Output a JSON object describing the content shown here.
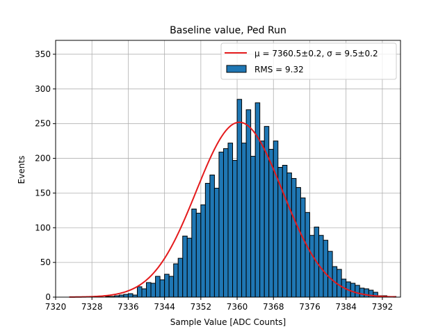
{
  "chart_data": {
    "type": "bar",
    "title": "Baseline value, Ped Run",
    "xlabel": "Sample Value [ADC Counts]",
    "ylabel": "Events",
    "xlim": [
      7320,
      7396
    ],
    "ylim": [
      0,
      370
    ],
    "xticks": [
      7320,
      7328,
      7336,
      7344,
      7352,
      7360,
      7368,
      7376,
      7384,
      7392
    ],
    "yticks": [
      0,
      50,
      100,
      150,
      200,
      250,
      300,
      350
    ],
    "grid": true,
    "legend_position": "top-right",
    "bin_width": 1,
    "histogram": {
      "name": "RMS = 9.32",
      "color": "#1f77b4",
      "edge_color": "#000000",
      "x": [
        7323,
        7324,
        7325,
        7326,
        7327,
        7328,
        7329,
        7330,
        7331,
        7332,
        7333,
        7334,
        7335,
        7336,
        7337,
        7338,
        7339,
        7340,
        7341,
        7342,
        7343,
        7344,
        7345,
        7346,
        7347,
        7348,
        7349,
        7350,
        7351,
        7352,
        7353,
        7354,
        7355,
        7356,
        7357,
        7358,
        7359,
        7360,
        7361,
        7362,
        7363,
        7364,
        7365,
        7366,
        7367,
        7368,
        7369,
        7370,
        7371,
        7372,
        7373,
        7374,
        7375,
        7376,
        7377,
        7378,
        7379,
        7380,
        7381,
        7382,
        7383,
        7384,
        7385,
        7386,
        7387,
        7388,
        7389,
        7390,
        7391,
        7392,
        7393,
        7394
      ],
      "values": [
        0,
        0,
        0,
        0,
        0,
        0,
        0,
        0,
        1,
        1,
        2,
        3,
        4,
        5,
        3,
        15,
        12,
        21,
        20,
        30,
        25,
        33,
        30,
        48,
        56,
        88,
        85,
        127,
        121,
        133,
        164,
        176,
        157,
        209,
        214,
        222,
        197,
        285,
        222,
        270,
        203,
        280,
        225,
        246,
        213,
        225,
        187,
        190,
        179,
        171,
        158,
        143,
        122,
        89,
        101,
        89,
        82,
        66,
        44,
        40,
        26,
        22,
        20,
        17,
        13,
        12,
        10,
        7,
        2,
        2,
        1,
        1
      ]
    },
    "fit": {
      "label": "μ = 7360.5±0.2, σ = 9.5±0.2",
      "color": "#e41a1c",
      "mu": 7360.5,
      "sigma": 9.5,
      "amplitude": 252,
      "range": [
        7323,
        7395
      ]
    }
  }
}
